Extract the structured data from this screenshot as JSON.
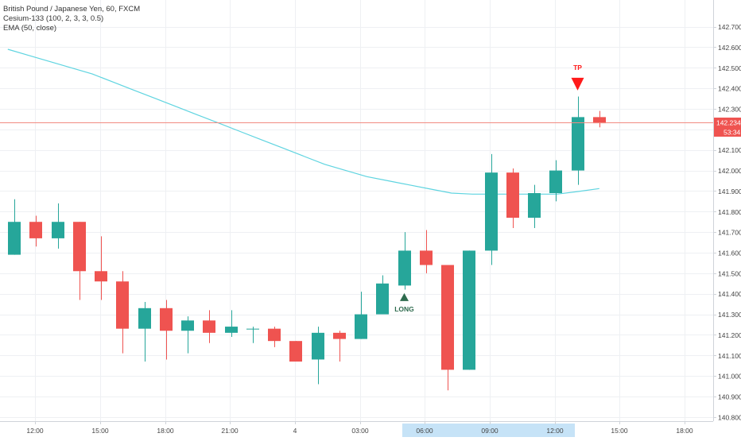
{
  "legend": {
    "title": "British Pound / Japanese Yen, 60, FXCM",
    "indicator": "Cesium-133 (100, 2, 3, 3, 0.5)",
    "ema": "EMA (50, close)"
  },
  "colors": {
    "up": "#26a69a",
    "down": "#ef5350",
    "ema": "#5fd4e0",
    "grid": "#eef0f3",
    "price_line": "#f28b82",
    "axis_text": "#444444",
    "highlight": "#c6e3f7",
    "long_marker": "#2e6b4e",
    "tp_marker": "#ff1a1a"
  },
  "price_axis": {
    "labels": [
      "142.700",
      "142.600",
      "142.500",
      "142.400",
      "142.300",
      "142.200",
      "142.100",
      "142.000",
      "141.900",
      "141.800",
      "141.700",
      "141.600",
      "141.500",
      "141.400",
      "141.300",
      "141.200",
      "141.100",
      "141.000",
      "140.900",
      "140.800"
    ],
    "current_price": "142.234",
    "countdown": "53:34"
  },
  "time_axis": {
    "labels": [
      "12:00",
      "15:00",
      "18:00",
      "21:00",
      "4",
      "03:00",
      "06:00",
      "09:00",
      "12:00",
      "15:00",
      "18:00"
    ],
    "highlight_label": "06:00"
  },
  "signals": {
    "long_label": "LONG",
    "tp_label": "TP"
  },
  "chart_data": {
    "type": "candlestick",
    "series_name": "British Pound / Japanese Yen, 60, FXCM",
    "timeframe": "60",
    "ylim": [
      140.78,
      142.83
    ],
    "bars": [
      {
        "o": 141.59,
        "h": 141.86,
        "l": 141.59,
        "c": 141.75
      },
      {
        "o": 141.75,
        "h": 141.78,
        "l": 141.63,
        "c": 141.67
      },
      {
        "o": 141.67,
        "h": 141.84,
        "l": 141.62,
        "c": 141.75
      },
      {
        "o": 141.75,
        "h": 141.75,
        "l": 141.37,
        "c": 141.51
      },
      {
        "o": 141.51,
        "h": 141.68,
        "l": 141.37,
        "c": 141.46
      },
      {
        "o": 141.46,
        "h": 141.51,
        "l": 141.11,
        "c": 141.23
      },
      {
        "o": 141.23,
        "h": 141.36,
        "l": 141.07,
        "c": 141.33
      },
      {
        "o": 141.33,
        "h": 141.37,
        "l": 141.08,
        "c": 141.22
      },
      {
        "o": 141.22,
        "h": 141.29,
        "l": 141.11,
        "c": 141.27
      },
      {
        "o": 141.27,
        "h": 141.32,
        "l": 141.16,
        "c": 141.21
      },
      {
        "o": 141.21,
        "h": 141.32,
        "l": 141.19,
        "c": 141.24
      },
      {
        "o": 141.23,
        "h": 141.24,
        "l": 141.16,
        "c": 141.23
      },
      {
        "o": 141.23,
        "h": 141.24,
        "l": 141.14,
        "c": 141.17
      },
      {
        "o": 141.17,
        "h": 141.17,
        "l": 141.07,
        "c": 141.07
      },
      {
        "o": 141.08,
        "h": 141.24,
        "l": 140.96,
        "c": 141.21
      },
      {
        "o": 141.21,
        "h": 141.22,
        "l": 141.07,
        "c": 141.18
      },
      {
        "o": 141.18,
        "h": 141.41,
        "l": 141.18,
        "c": 141.3
      },
      {
        "o": 141.3,
        "h": 141.49,
        "l": 141.3,
        "c": 141.45
      },
      {
        "o": 141.44,
        "h": 141.7,
        "l": 141.42,
        "c": 141.61
      },
      {
        "o": 141.61,
        "h": 141.71,
        "l": 141.5,
        "c": 141.54
      },
      {
        "o": 141.54,
        "h": 141.54,
        "l": 140.93,
        "c": 141.03
      },
      {
        "o": 141.03,
        "h": 141.61,
        "l": 141.03,
        "c": 141.61
      },
      {
        "o": 141.61,
        "h": 142.08,
        "l": 141.54,
        "c": 141.99
      },
      {
        "o": 141.99,
        "h": 142.01,
        "l": 141.72,
        "c": 141.77
      },
      {
        "o": 141.77,
        "h": 141.93,
        "l": 141.72,
        "c": 141.89
      },
      {
        "o": 141.89,
        "h": 142.05,
        "l": 141.85,
        "c": 142.0
      },
      {
        "o": 142.0,
        "h": 142.36,
        "l": 141.93,
        "c": 142.26
      },
      {
        "o": 142.26,
        "h": 142.29,
        "l": 142.21,
        "c": 142.23
      }
    ],
    "ema_values": [
      142.59,
      142.56,
      142.53,
      142.5,
      142.47,
      142.43,
      142.39,
      142.35,
      142.31,
      142.27,
      142.23,
      142.19,
      142.15,
      142.11,
      142.07,
      142.03,
      142.0,
      141.97,
      141.95,
      141.93,
      141.91,
      141.89,
      141.885,
      141.885,
      141.885,
      141.885,
      141.885,
      141.898,
      141.912
    ],
    "ema_start_index": -0.3,
    "long_signal_index": 18,
    "long_signal_price": 141.38,
    "tp_signal_index": 26,
    "tp_signal_price": 142.405
  }
}
